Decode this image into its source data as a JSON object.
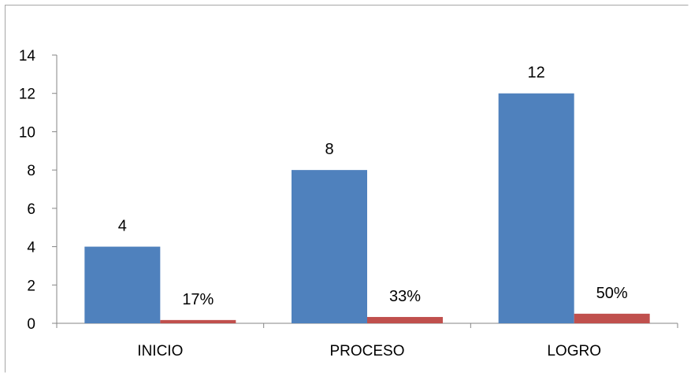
{
  "chart_data": {
    "type": "bar",
    "categories": [
      "INICIO",
      "PROCESO",
      "LOGRO"
    ],
    "series": [
      {
        "values": [
          4,
          8,
          12
        ],
        "data_labels": [
          "4",
          "8",
          "12"
        ],
        "color": "#4f81bd"
      },
      {
        "values": [
          0.17,
          0.33,
          0.5
        ],
        "data_labels": [
          "17%",
          "33%",
          "50%"
        ],
        "color": "#c0504d"
      }
    ],
    "ylim": [
      0,
      14
    ],
    "yticks": [
      "0",
      "2",
      "4",
      "6",
      "8",
      "10",
      "12",
      "14"
    ],
    "grid": false,
    "legend": "none"
  }
}
